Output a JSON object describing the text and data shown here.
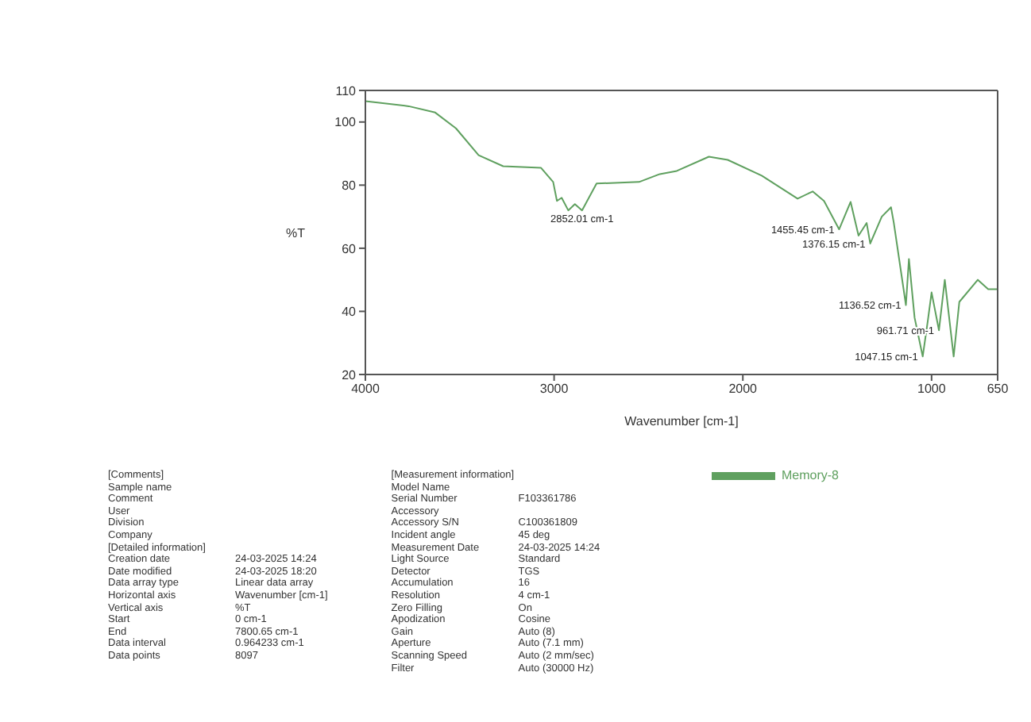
{
  "chart_data": {
    "type": "line",
    "xlabel": "Wavenumber [cm-1]",
    "ylabel": "%T",
    "xlim": [
      4000,
      650
    ],
    "xticks": [
      4000,
      3000,
      2000,
      1000,
      650
    ],
    "ylim": [
      20,
      110
    ],
    "yticks": [
      20,
      40,
      60,
      80,
      100,
      110
    ],
    "grid": false,
    "legend": "bottom right",
    "marker": "none",
    "line_style": "solid",
    "series": [
      {
        "name": "Memory-8",
        "color": "#5fa05f",
        "x": [
          4000,
          3770,
          3630,
          3520,
          3400,
          3270,
          3070,
          3005,
          2985,
          2960,
          2925,
          2890,
          2852,
          2775,
          2550,
          2440,
          2350,
          2180,
          2080,
          1900,
          1710,
          1630,
          1570,
          1490,
          1429,
          1387,
          1344,
          1325,
          1264,
          1215,
          1200,
          1136,
          1120,
          1090,
          1047,
          1020,
          1000,
          961,
          930,
          883,
          853,
          755,
          700,
          650
        ],
        "values": [
          106.6,
          105,
          103,
          98,
          89.5,
          86,
          85.5,
          81,
          75,
          76,
          72,
          74,
          72,
          80.5,
          81,
          83.5,
          84.5,
          89,
          88,
          83,
          75.7,
          78,
          75,
          66,
          74.7,
          64,
          68,
          61.5,
          70,
          73,
          68,
          42,
          56.6,
          38,
          25.7,
          37,
          46,
          34,
          50,
          25.7,
          43,
          50,
          47,
          47
        ]
      }
    ],
    "annotations": [
      {
        "text": "2852.01 cm-1",
        "x": 2852,
        "y": 72
      },
      {
        "text": "1455.45 cm-1",
        "x": 1490,
        "y": 66
      },
      {
        "text": "1376.15 cm-1",
        "x": 1325,
        "y": 61.5
      },
      {
        "text": "1136.52 cm-1",
        "x": 1136,
        "y": 42
      },
      {
        "text": "961.71 cm-1",
        "x": 961,
        "y": 34
      },
      {
        "text": "1047.15 cm-1",
        "x": 1047,
        "y": 25.7
      },
      "[Comments]",
      "Sample name",
      "Comment",
      "User",
      "Division",
      "Company",
      "[Detailed information]",
      "Creation date\t24-03-2025 14:24",
      "Date modified\t24-03-2025 18:20",
      "Data array type\tLinear data array",
      "Horizontal axis\tWavenumber [cm-1]",
      "Vertical axis\t%T",
      "Start\t0 cm-1",
      "End\t7800.65 cm-1",
      "Data interval\t0.964233 cm-1",
      "Data points\t8097",
      "[Measurement information]",
      "Model Name",
      "Serial Number\tF103361786",
      "Accessory",
      "Accessory S/N\tC100361809",
      "Incident angle\t45 deg",
      "Measurement Date\t24-03-2025 14:24",
      "Light Source\tStandard",
      "Detector\tTGS",
      "Accumulation\t16",
      "Resolution\t4 cm-1",
      "Zero Filling\tOn",
      "Apodization\tCosine",
      "Gain\tAuto (8)",
      "Aperture\tAuto (7.1 mm)",
      "Scanning Speed\tAuto (2 mm/sec)",
      "Filter\tAuto (30000 Hz)"
    ]
  }
}
